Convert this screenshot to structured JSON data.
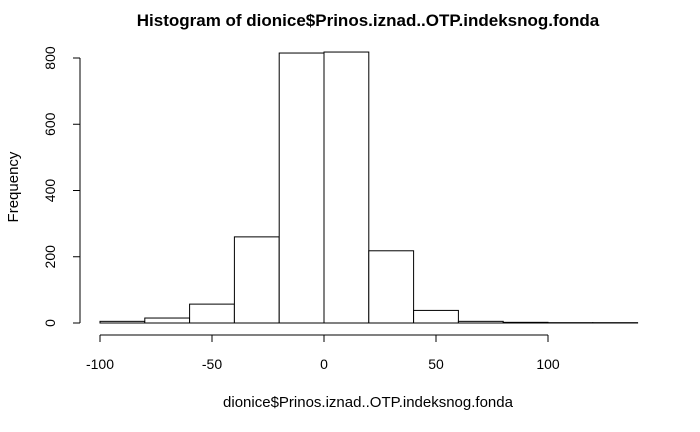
{
  "chart_data": {
    "type": "bar",
    "title": "Histogram of dionice$Prinos.iznad..OTP.indeksnog.fonda",
    "xlabel": "dionice$Prinos.iznad..OTP.indeksnog.fonda",
    "ylabel": "Frequency",
    "bins": [
      {
        "from": -100,
        "to": -80,
        "count": 5
      },
      {
        "from": -80,
        "to": -60,
        "count": 15
      },
      {
        "from": -60,
        "to": -40,
        "count": 57
      },
      {
        "from": -40,
        "to": -20,
        "count": 260
      },
      {
        "from": -20,
        "to": 0,
        "count": 815
      },
      {
        "from": 0,
        "to": 20,
        "count": 818
      },
      {
        "from": 20,
        "to": 40,
        "count": 218
      },
      {
        "from": 40,
        "to": 60,
        "count": 38
      },
      {
        "from": 60,
        "to": 80,
        "count": 5
      },
      {
        "from": 80,
        "to": 100,
        "count": 2
      },
      {
        "from": 100,
        "to": 120,
        "count": 1
      },
      {
        "from": 120,
        "to": 140,
        "count": 1
      }
    ],
    "x_ticks": [
      -100,
      -50,
      0,
      50,
      100
    ],
    "y_ticks": [
      0,
      200,
      400,
      600,
      800
    ],
    "xlim": [
      -100,
      140
    ],
    "ylim": [
      0,
      818
    ],
    "grid": false
  }
}
